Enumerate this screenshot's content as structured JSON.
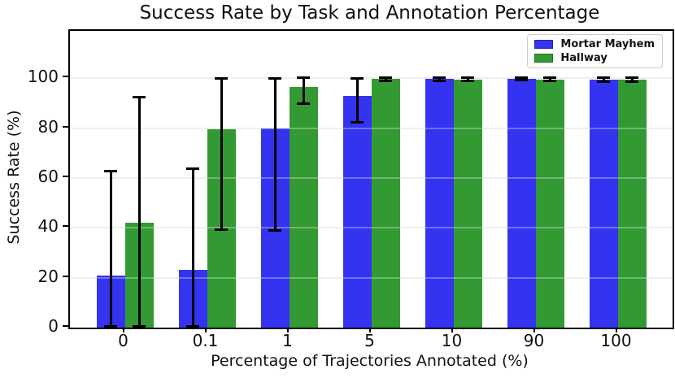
{
  "title": "Success Rate by Task and Annotation Percentage",
  "chart_data": {
    "type": "bar",
    "title": "Success Rate by Task and Annotation Percentage",
    "xlabel": "Percentage of Trajectories Annotated (%)",
    "ylabel": "Success Rate (%)",
    "categories": [
      "0",
      "0.1",
      "1",
      "5",
      "10",
      "90",
      "100"
    ],
    "series": [
      {
        "name": "Mortar Mayhem",
        "color": "#3333f0",
        "values": [
          21,
          23,
          80,
          93,
          99.8,
          99.9,
          99.5
        ],
        "error_low": [
          0,
          0,
          39,
          82.5,
          99,
          99.3,
          98.7
        ],
        "error_high": [
          63,
          64,
          100,
          100,
          100.5,
          100.4,
          100.3
        ]
      },
      {
        "name": "Hallway",
        "color": "#339933",
        "values": [
          42,
          79.5,
          96.5,
          99.8,
          99.6,
          99.6,
          99.5
        ],
        "error_low": [
          0,
          39.5,
          90,
          99,
          99,
          99,
          98.7
        ],
        "error_high": [
          92.5,
          100,
          100.5,
          100.5,
          100.3,
          100.3,
          100.3
        ]
      }
    ],
    "yticks": [
      0,
      20,
      40,
      60,
      80,
      100
    ],
    "ylim": [
      0,
      119
    ],
    "grid": "horizontal",
    "legend_position": "top-right",
    "error_bar_color": "#000000",
    "axis_color": "#000000"
  }
}
